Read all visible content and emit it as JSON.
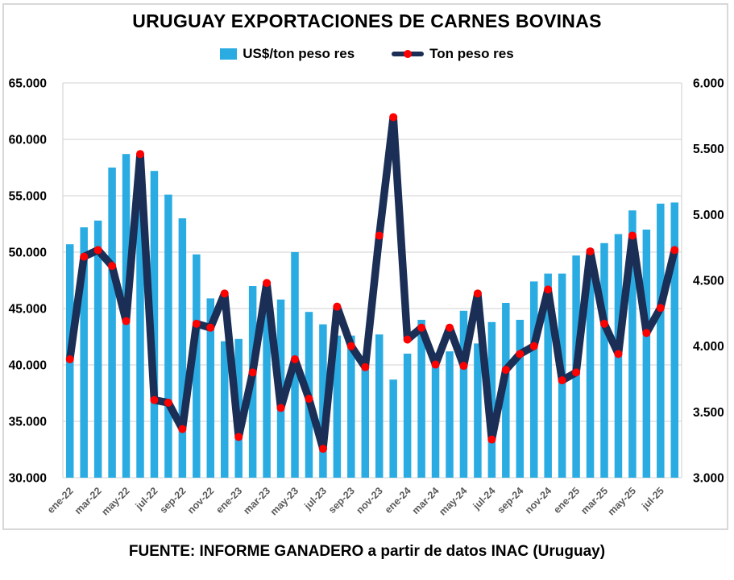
{
  "title": "URUGUAY EXPORTACIONES DE CARNES BOVINAS",
  "source_note": "FUENTE: INFORME GANADERO a partir de datos INAC (Uruguay)",
  "legend": [
    {
      "label": "US$/ton peso res",
      "swatch": "blue-bar-swatch"
    },
    {
      "label": "Ton peso res",
      "swatch": "navy-line-red-dot-swatch"
    }
  ],
  "colors": {
    "bar": "#2aace3",
    "line": "#1b2e55",
    "marker": "#ff0000",
    "grid": "#d9d9d9",
    "axis_text": "#000000",
    "x_tick_text": "#595959",
    "frame_border": "#d8d8d8",
    "background": "#ffffff"
  },
  "chart_data": {
    "type": "bar",
    "subtype": "combo-bar-line-dual-axis",
    "title": "URUGUAY EXPORTACIONES DE CARNES BOVINAS",
    "grid": true,
    "legend_position": "top",
    "x_tick_step": 2,
    "categories": [
      "ene-22",
      "feb-22",
      "mar-22",
      "abr-22",
      "may-22",
      "jun-22",
      "jul-22",
      "ago-22",
      "sep-22",
      "oct-22",
      "nov-22",
      "dic-22",
      "ene-23",
      "feb-23",
      "mar-23",
      "abr-23",
      "may-23",
      "jun-23",
      "jul-23",
      "ago-23",
      "sep-23",
      "oct-23",
      "nov-23",
      "dic-23",
      "ene-24",
      "feb-24",
      "mar-24",
      "abr-24",
      "may-24",
      "jun-24",
      "jul-24",
      "ago-24",
      "sep-24",
      "oct-24",
      "nov-24",
      "dic-24",
      "ene-25",
      "feb-25",
      "mar-25",
      "abr-25",
      "may-25",
      "jun-25",
      "jul-25",
      "ago-25"
    ],
    "series": [
      {
        "name": "US$/ton peso res",
        "type": "bar",
        "axis": "left",
        "color": "#2aace3",
        "values": [
          50700,
          52200,
          52800,
          57500,
          58700,
          58000,
          57200,
          55100,
          53000,
          49800,
          45900,
          42100,
          42300,
          47000,
          47300,
          45800,
          50000,
          44700,
          43600,
          42600,
          42600,
          39700,
          42700,
          38700,
          41000,
          44000,
          41100,
          41200,
          44800,
          41900,
          43800,
          45500,
          44000,
          47400,
          48100,
          48100,
          49700,
          50300,
          50800,
          51600,
          53700,
          52000,
          54300,
          54400
        ]
      },
      {
        "name": "Ton peso res",
        "type": "line",
        "axis": "right",
        "color": "#1b2e55",
        "marker": "circle",
        "marker_color": "#ff0000",
        "values": [
          3900,
          4680,
          4730,
          4610,
          4190,
          5460,
          3590,
          3570,
          3370,
          4170,
          4140,
          4400,
          3310,
          3800,
          4480,
          3530,
          3900,
          3600,
          3220,
          4300,
          4000,
          3840,
          4840,
          5740,
          4050,
          4140,
          3860,
          4140,
          3850,
          4400,
          3290,
          3820,
          3940,
          4000,
          4430,
          3740,
          3800,
          4720,
          4170,
          3940,
          4840,
          4100,
          4290,
          4730
        ]
      }
    ],
    "left_axis": {
      "min": 30000,
      "max": 65000,
      "step": 5000,
      "tick_labels": [
        "65.000",
        "60.000",
        "55.000",
        "50.000",
        "45.000",
        "40.000",
        "35.000",
        "30.000"
      ]
    },
    "right_axis": {
      "min": 3000,
      "max": 6000,
      "step": 500,
      "tick_labels": [
        "6.000",
        "5.500",
        "5.000",
        "4.500",
        "4.000",
        "3.500",
        "3.000"
      ]
    }
  }
}
